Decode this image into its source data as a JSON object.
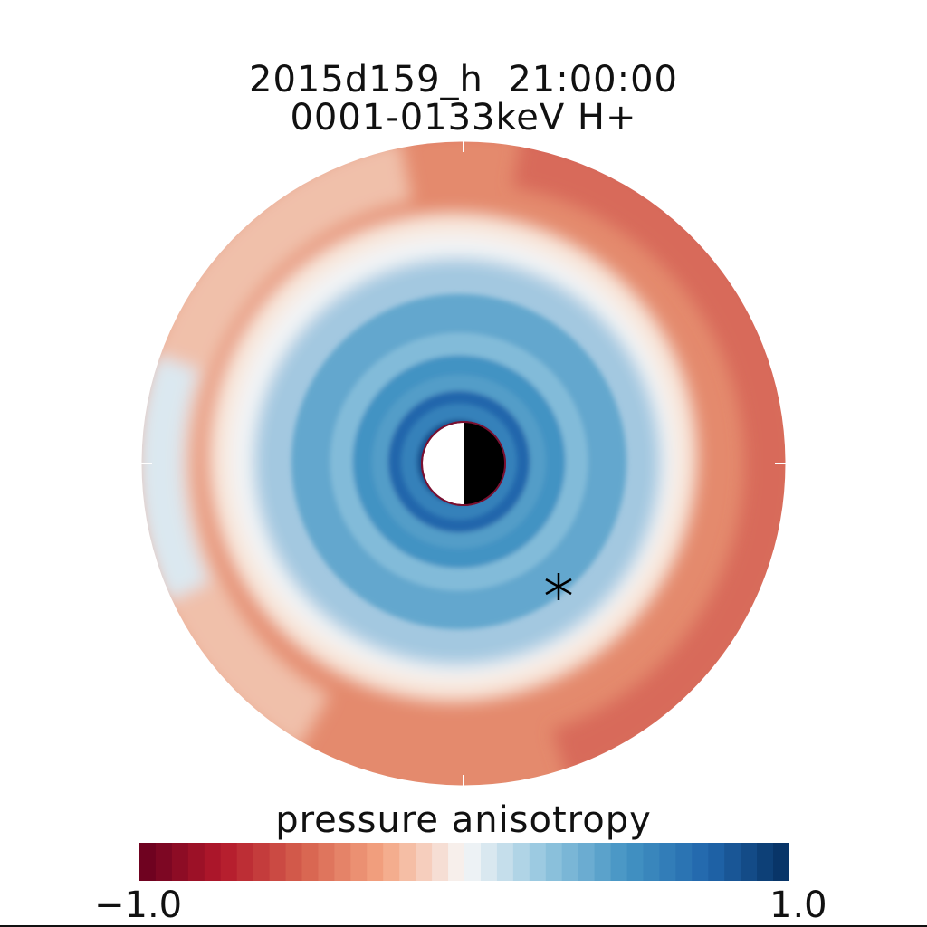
{
  "chart_data": {
    "type": "heatmap",
    "subtype": "polar equatorial map",
    "title_line1": "2015d159_h  21:00:00",
    "title_line2": "0001-0133keV H+",
    "colorbar": {
      "label": "pressure anisotropy",
      "min": -1.0,
      "max": 1.0,
      "min_label": "−1.0",
      "max_label": "1.0",
      "colormap": "diverging red-white-blue",
      "color_min": "#67001f",
      "color_mid": "#f7f7f7",
      "color_max": "#053061"
    },
    "field_description_radial_profile": [
      {
        "r": 0.13,
        "value": 0.85
      },
      {
        "r": 0.18,
        "value": 0.6
      },
      {
        "r": 0.22,
        "value": 0.75
      },
      {
        "r": 0.27,
        "value": 0.45
      },
      {
        "r": 0.33,
        "value": 0.5
      },
      {
        "r": 0.4,
        "value": 0.3
      },
      {
        "r": 0.45,
        "value": 0.4
      },
      {
        "r": 0.52,
        "value": 0.4
      },
      {
        "r": 0.62,
        "value": 0.2
      },
      {
        "r": 0.7,
        "value": -0.1
      },
      {
        "r": 0.8,
        "value": -0.4
      },
      {
        "r": 1.0,
        "value": -0.6
      }
    ],
    "earth_marker": "half dayside white, nightside black",
    "satellite_marker": "asterisk"
  }
}
